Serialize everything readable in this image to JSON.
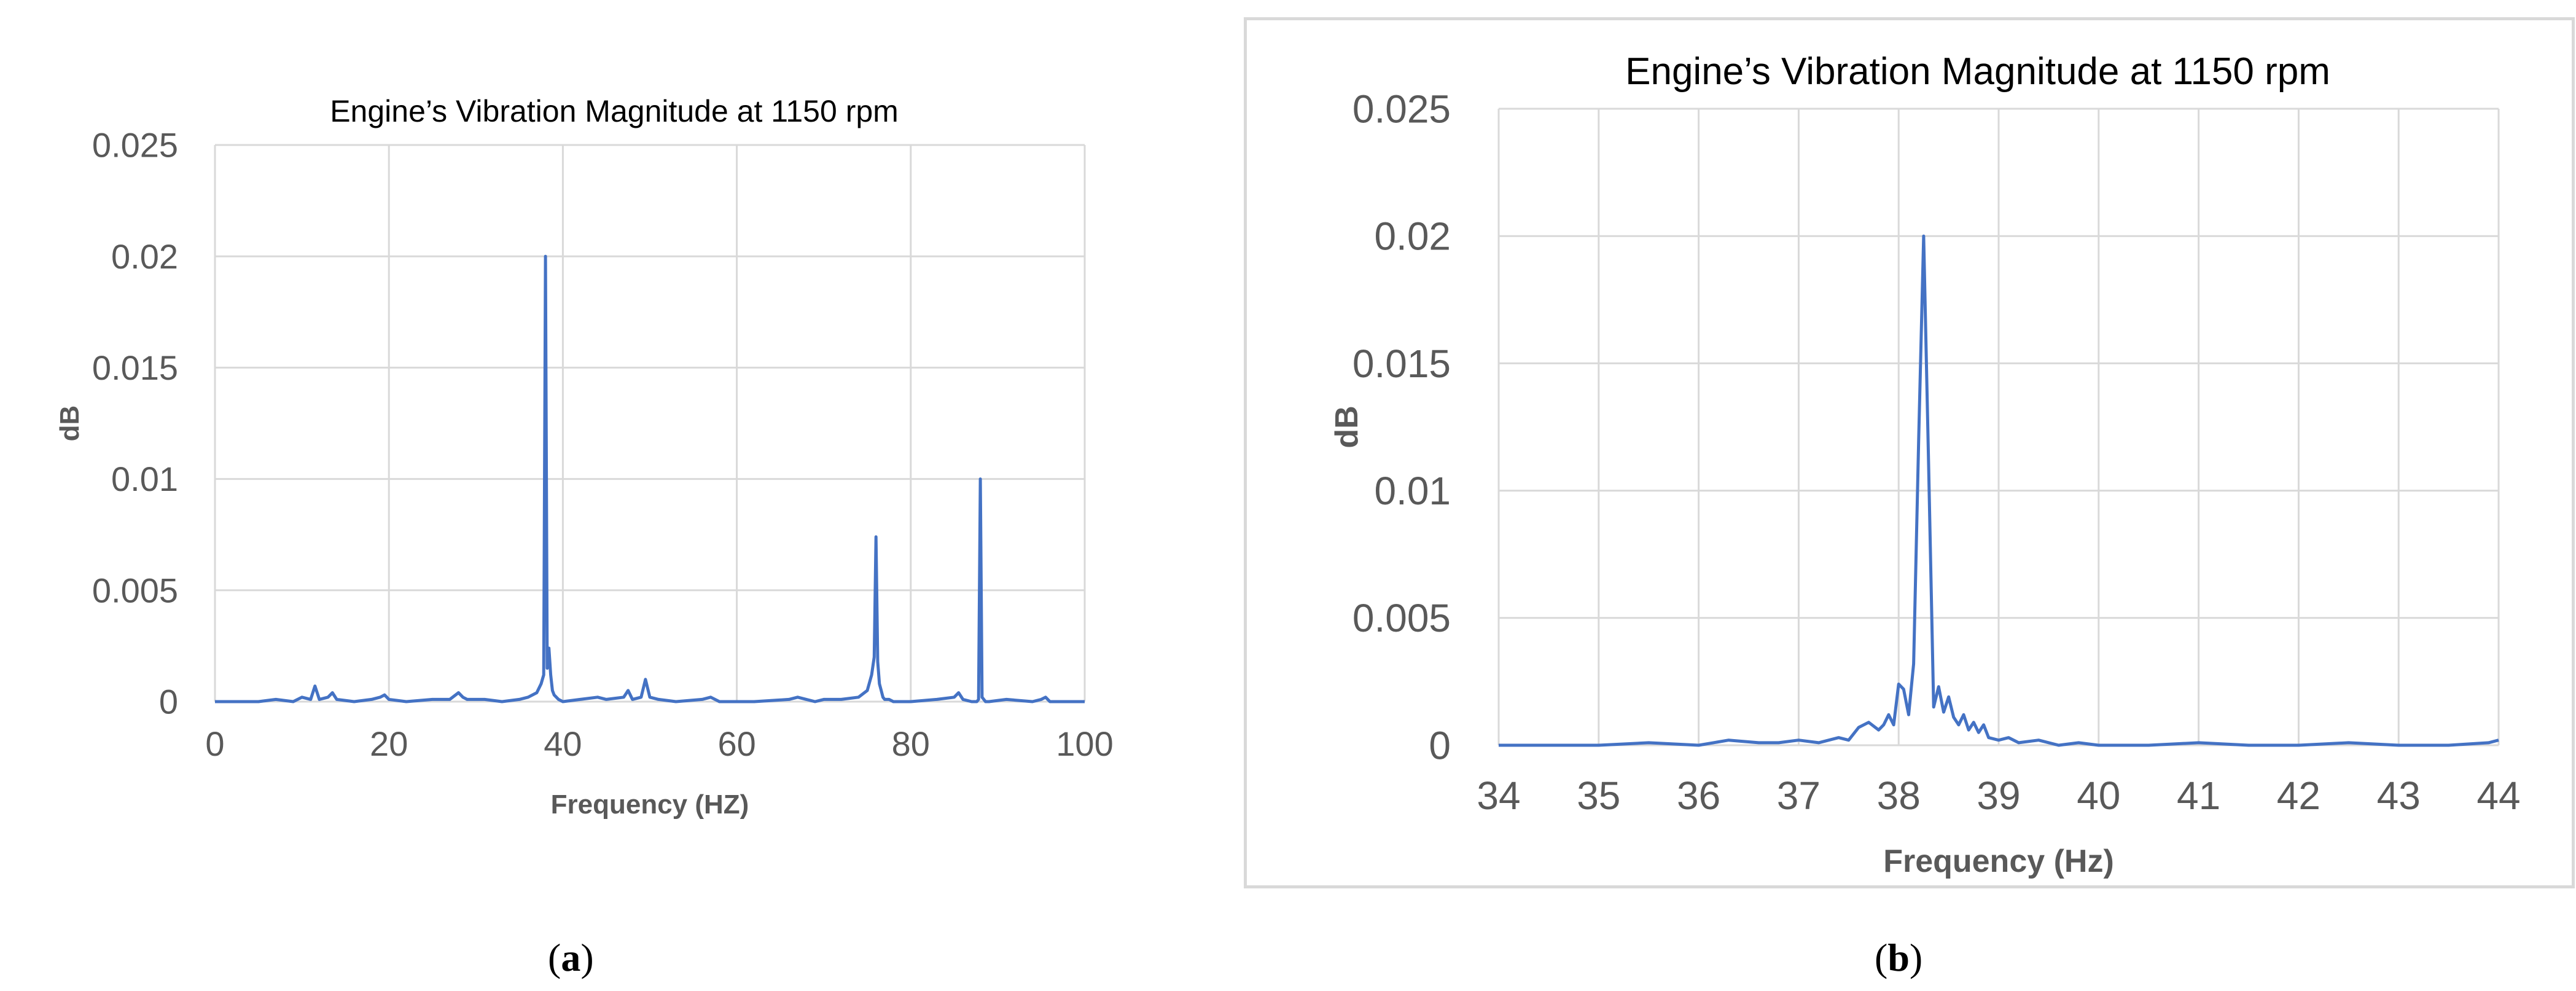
{
  "captions": {
    "a": {
      "open": "(",
      "letter": "a",
      "close": ")"
    },
    "b": {
      "open": "(",
      "letter": "b",
      "close": ")"
    }
  },
  "colors": {
    "series": "#4472c4",
    "grid": "#d9d9d9",
    "tick_text": "#595959",
    "axis_title": "#595959",
    "title": "#000000"
  },
  "chart_data": [
    {
      "type": "line",
      "title": "Engine’s Vibration Magnitude at 1150 rpm",
      "xlabel": "Frequency (HZ)",
      "ylabel": "dB",
      "xlim": [
        0,
        100
      ],
      "ylim": [
        0,
        0.025
      ],
      "xticks": [
        0,
        20,
        40,
        60,
        80,
        100
      ],
      "yticks": [
        0,
        0.005,
        0.01,
        0.015,
        0.02,
        0.025
      ],
      "ytick_labels": [
        "0",
        "0.005",
        "0.01",
        "0.015",
        "0.02",
        "0.025"
      ],
      "grid": true,
      "series": [
        {
          "x": [
            0,
            5,
            7,
            9,
            10,
            11,
            11.5,
            12,
            13,
            13.5,
            14,
            16,
            18,
            19,
            19.5,
            20,
            22,
            25,
            27,
            28,
            28.5,
            29,
            31,
            33,
            35,
            36,
            37,
            37.5,
            37.8,
            38,
            38.2,
            38.4,
            38.6,
            38.8,
            39,
            39.5,
            40,
            42,
            44,
            45,
            47,
            47.5,
            48,
            49,
            49.5,
            50,
            51,
            53,
            56,
            57,
            58,
            62,
            66,
            67,
            69,
            70,
            72,
            74,
            75,
            75.5,
            75.8,
            76,
            76.2,
            76.4,
            76.6,
            76.8,
            77,
            77.5,
            78,
            80,
            83,
            85,
            85.5,
            86,
            87,
            87.6,
            87.8,
            88,
            88.2,
            88.4,
            88.6,
            89,
            91,
            94,
            95,
            95.5,
            96,
            98,
            100
          ],
          "y": [
            0,
            0,
            0.0001,
            0,
            0.0002,
            0.0001,
            0.0007,
            0.0001,
            0.0002,
            0.0004,
            0.0001,
            0,
            0.0001,
            0.0002,
            0.0003,
            0.0001,
            0,
            0.0001,
            0.0001,
            0.0004,
            0.0002,
            0.0001,
            0.0001,
            0,
            0.0001,
            0.0002,
            0.0004,
            0.0008,
            0.0012,
            0.02,
            0.0015,
            0.0024,
            0.0012,
            0.0005,
            0.0003,
            0.0001,
            0,
            0.0001,
            0.0002,
            0.0001,
            0.0002,
            0.0005,
            0.0001,
            0.0002,
            0.001,
            0.0002,
            0.0001,
            0,
            0.0001,
            0.0002,
            0,
            0,
            0.0001,
            0.0002,
            0,
            0.0001,
            0.0001,
            0.0002,
            0.0005,
            0.0012,
            0.002,
            0.0074,
            0.0018,
            0.0008,
            0.0005,
            0.0002,
            0.0001,
            0.0001,
            0,
            0,
            0.0001,
            0.0002,
            0.0004,
            0.0001,
            0,
            0,
            0.0001,
            0.01,
            0.0002,
            0.0001,
            0,
            0,
            0.0001,
            0,
            0.0001,
            0.0002,
            0,
            0,
            0
          ]
        }
      ]
    },
    {
      "type": "line",
      "title": "Engine’s Vibration Magnitude at 1150 rpm",
      "xlabel": "Frequency (Hz)",
      "ylabel": "dB",
      "xlim": [
        34,
        44
      ],
      "ylim": [
        0,
        0.025
      ],
      "xticks": [
        34,
        35,
        36,
        37,
        38,
        39,
        40,
        41,
        42,
        43,
        44
      ],
      "yticks": [
        0,
        0.005,
        0.01,
        0.015,
        0.02,
        0.025
      ],
      "ytick_labels": [
        "0",
        "0.005",
        "0.01",
        "0.015",
        "0.02",
        "0.025"
      ],
      "grid": true,
      "series": [
        {
          "x": [
            34,
            34.5,
            35,
            35.5,
            36,
            36.3,
            36.6,
            36.8,
            37,
            37.2,
            37.4,
            37.5,
            37.6,
            37.7,
            37.8,
            37.85,
            37.9,
            37.95,
            38,
            38.05,
            38.1,
            38.15,
            38.2,
            38.25,
            38.3,
            38.35,
            38.4,
            38.45,
            38.5,
            38.55,
            38.6,
            38.65,
            38.7,
            38.75,
            38.8,
            38.85,
            38.9,
            39,
            39.1,
            39.2,
            39.4,
            39.6,
            39.8,
            40,
            40.5,
            41,
            41.5,
            42,
            42.5,
            43,
            43.5,
            43.9,
            44
          ],
          "y": [
            0,
            0,
            0,
            0.0001,
            0,
            0.0002,
            0.0001,
            0.0001,
            0.0002,
            0.0001,
            0.0003,
            0.0002,
            0.0007,
            0.0009,
            0.0006,
            0.0008,
            0.0012,
            0.0008,
            0.0024,
            0.0022,
            0.0012,
            0.0032,
            0.012,
            0.02,
            0.011,
            0.0015,
            0.0023,
            0.0013,
            0.0019,
            0.0011,
            0.0008,
            0.0012,
            0.0006,
            0.0009,
            0.0005,
            0.0008,
            0.0003,
            0.0002,
            0.0003,
            0.0001,
            0.0002,
            0,
            0.0001,
            0,
            0,
            0.0001,
            0,
            0,
            0.0001,
            0,
            0,
            0.0001,
            0.0002
          ]
        }
      ]
    }
  ]
}
